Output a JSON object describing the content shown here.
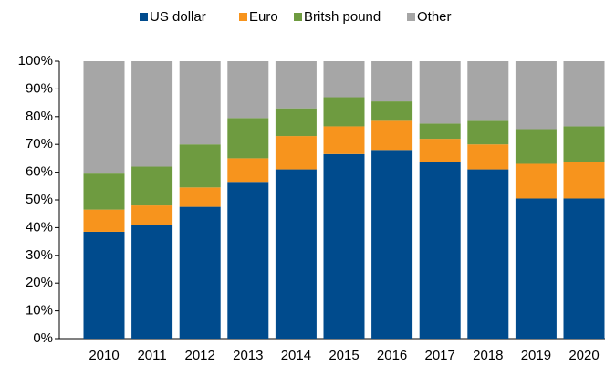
{
  "chart_data": {
    "type": "stacked_bar",
    "categories": [
      "2010",
      "2011",
      "2012",
      "2013",
      "2014",
      "2015",
      "2016",
      "2017",
      "2018",
      "2019",
      "2020"
    ],
    "series": [
      {
        "name": "US dollar",
        "color": "#004b8d",
        "values": [
          38.5,
          41,
          47.5,
          56.5,
          61,
          66.5,
          68,
          63.5,
          61,
          50.5,
          50.5
        ]
      },
      {
        "name": "Euro",
        "color": "#f7941d",
        "values": [
          8,
          7,
          7,
          8.5,
          12,
          10,
          10.5,
          8.5,
          9,
          12.5,
          13
        ]
      },
      {
        "name": "Britsh pound",
        "color": "#6e9b40",
        "values": [
          13,
          14,
          15.5,
          14.5,
          10,
          10.5,
          7,
          5.5,
          8.5,
          12.5,
          13
        ]
      },
      {
        "name": "Other",
        "color": "#a6a6a6",
        "values": [
          40.5,
          38,
          30,
          20.5,
          17,
          13,
          14.5,
          22.5,
          21.5,
          24.5,
          23.5
        ]
      }
    ],
    "ylim": [
      0,
      100
    ],
    "yticks": [
      {
        "value": 0,
        "label": "0%"
      },
      {
        "value": 10,
        "label": "10%"
      },
      {
        "value": 20,
        "label": "20%"
      },
      {
        "value": 30,
        "label": "30%"
      },
      {
        "value": 40,
        "label": "40%"
      },
      {
        "value": 50,
        "label": "50%"
      },
      {
        "value": 60,
        "label": "60%"
      },
      {
        "value": 70,
        "label": "70%"
      },
      {
        "value": 80,
        "label": "80%"
      },
      {
        "value": 90,
        "label": "90%"
      },
      {
        "value": 100,
        "label": "100%"
      }
    ],
    "legend": "top",
    "grid": false
  }
}
